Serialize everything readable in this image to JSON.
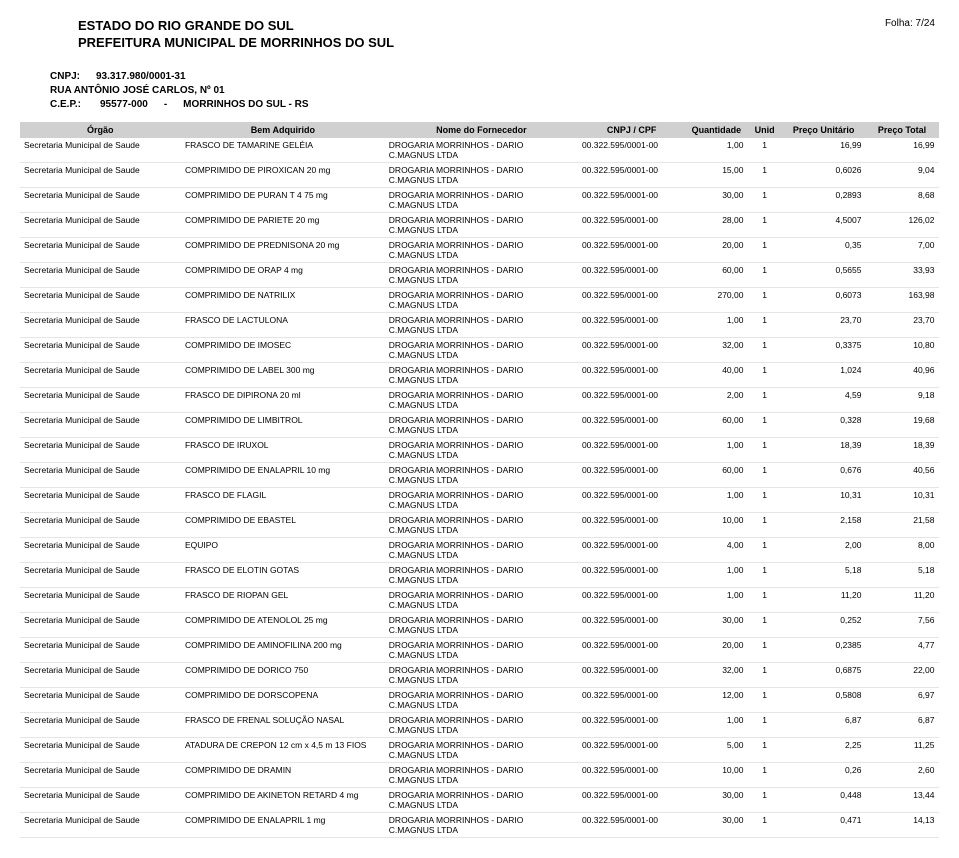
{
  "header": {
    "estado": "ESTADO DO RIO GRANDE DO SUL",
    "prefeitura": "PREFEITURA MUNICIPAL DE MORRINHOS DO SUL",
    "folha_label": "Folha:",
    "folha_value": "7/24",
    "cnpj_label": "CNPJ:",
    "cnpj_value": "93.317.980/0001-31",
    "endereco": "RUA ANTÔNIO JOSÉ CARLOS, Nº 01",
    "cep_label": "C.E.P.:",
    "cep_value": "95577-000",
    "cidade_sep": "-",
    "cidade": "MORRINHOS DO SUL - RS"
  },
  "columns": {
    "orgao": "Órgão",
    "bem": "Bem Adquirido",
    "fornecedor": "Nome do Fornecedor",
    "cnpj": "CNPJ / CPF",
    "quantidade": "Quantidade",
    "unid": "Unid",
    "preco_unit": "Preço Unitário",
    "preco_total": "Preço Total"
  },
  "fornecedor_line1": "DROGARIA MORRINHOS - DARIO",
  "fornecedor_line2": "C.MAGNUS LTDA",
  "orgao_value": "Secretaria Municipal de Saude",
  "cnpj_value": "00.322.595/0001-00",
  "rows": [
    {
      "bem": "FRASCO DE TAMARINE GELÉIA",
      "qtd": "1,00",
      "unid": "1",
      "pu": "16,99",
      "pt": "16,99"
    },
    {
      "bem": "COMPRIMIDO DE PIROXICAN 20 mg",
      "qtd": "15,00",
      "unid": "1",
      "pu": "0,6026",
      "pt": "9,04"
    },
    {
      "bem": "COMPRIMIDO DE PURAN T 4 75 mg",
      "qtd": "30,00",
      "unid": "1",
      "pu": "0,2893",
      "pt": "8,68"
    },
    {
      "bem": "COMPRIMIDO DE PARIETE 20 mg",
      "qtd": "28,00",
      "unid": "1",
      "pu": "4,5007",
      "pt": "126,02"
    },
    {
      "bem": "COMPRIMIDO DE PREDNISONA 20 mg",
      "qtd": "20,00",
      "unid": "1",
      "pu": "0,35",
      "pt": "7,00"
    },
    {
      "bem": "COMPRIMIDO DE ORAP 4 mg",
      "qtd": "60,00",
      "unid": "1",
      "pu": "0,5655",
      "pt": "33,93"
    },
    {
      "bem": "COMPRIMIDO DE NATRILIX",
      "qtd": "270,00",
      "unid": "1",
      "pu": "0,6073",
      "pt": "163,98"
    },
    {
      "bem": "FRASCO DE LACTULONA",
      "qtd": "1,00",
      "unid": "1",
      "pu": "23,70",
      "pt": "23,70"
    },
    {
      "bem": "COMPRIMIDO DE IMOSEC",
      "qtd": "32,00",
      "unid": "1",
      "pu": "0,3375",
      "pt": "10,80"
    },
    {
      "bem": "COMPRIMIDO DE LABEL 300 mg",
      "qtd": "40,00",
      "unid": "1",
      "pu": "1,024",
      "pt": "40,96"
    },
    {
      "bem": "FRASCO DE DIPIRONA 20 ml",
      "qtd": "2,00",
      "unid": "1",
      "pu": "4,59",
      "pt": "9,18"
    },
    {
      "bem": "COMPRIMIDO DE LIMBITROL",
      "qtd": "60,00",
      "unid": "1",
      "pu": "0,328",
      "pt": "19,68"
    },
    {
      "bem": "FRASCO DE IRUXOL",
      "qtd": "1,00",
      "unid": "1",
      "pu": "18,39",
      "pt": "18,39"
    },
    {
      "bem": "COMPRIMIDO DE ENALAPRIL 10 mg",
      "qtd": "60,00",
      "unid": "1",
      "pu": "0,676",
      "pt": "40,56"
    },
    {
      "bem": "FRASCO DE FLAGIL",
      "qtd": "1,00",
      "unid": "1",
      "pu": "10,31",
      "pt": "10,31"
    },
    {
      "bem": "COMPRIMIDO DE EBASTEL",
      "qtd": "10,00",
      "unid": "1",
      "pu": "2,158",
      "pt": "21,58"
    },
    {
      "bem": "EQUIPO",
      "qtd": "4,00",
      "unid": "1",
      "pu": "2,00",
      "pt": "8,00"
    },
    {
      "bem": "FRASCO DE ELOTIN GOTAS",
      "qtd": "1,00",
      "unid": "1",
      "pu": "5,18",
      "pt": "5,18"
    },
    {
      "bem": "FRASCO DE RIOPAN GEL",
      "qtd": "1,00",
      "unid": "1",
      "pu": "11,20",
      "pt": "11,20"
    },
    {
      "bem": "COMPRIMIDO DE ATENOLOL 25 mg",
      "qtd": "30,00",
      "unid": "1",
      "pu": "0,252",
      "pt": "7,56"
    },
    {
      "bem": "COMPRIMIDO DE AMINOFILINA 200 mg",
      "qtd": "20,00",
      "unid": "1",
      "pu": "0,2385",
      "pt": "4,77"
    },
    {
      "bem": "COMPRIMIDO DE DORICO 750",
      "qtd": "32,00",
      "unid": "1",
      "pu": "0,6875",
      "pt": "22,00"
    },
    {
      "bem": "COMPRIMIDO DE DORSCOPENA",
      "qtd": "12,00",
      "unid": "1",
      "pu": "0,5808",
      "pt": "6,97"
    },
    {
      "bem": "FRASCO DE FRENAL SOLUÇÃO NASAL",
      "qtd": "1,00",
      "unid": "1",
      "pu": "6,87",
      "pt": "6,87"
    },
    {
      "bem": "ATADURA DE CREPON 12 cm x 4,5 m 13 FIOS",
      "qtd": "5,00",
      "unid": "1",
      "pu": "2,25",
      "pt": "11,25"
    },
    {
      "bem": "COMPRIMIDO DE DRAMIN",
      "qtd": "10,00",
      "unid": "1",
      "pu": "0,26",
      "pt": "2,60"
    },
    {
      "bem": "COMPRIMIDO DE AKINETON RETARD 4 mg",
      "qtd": "30,00",
      "unid": "1",
      "pu": "0,448",
      "pt": "13,44"
    },
    {
      "bem": "COMPRIMIDO DE ENALAPRIL 1 mg",
      "qtd": "30,00",
      "unid": "1",
      "pu": "0,471",
      "pt": "14,13"
    }
  ]
}
